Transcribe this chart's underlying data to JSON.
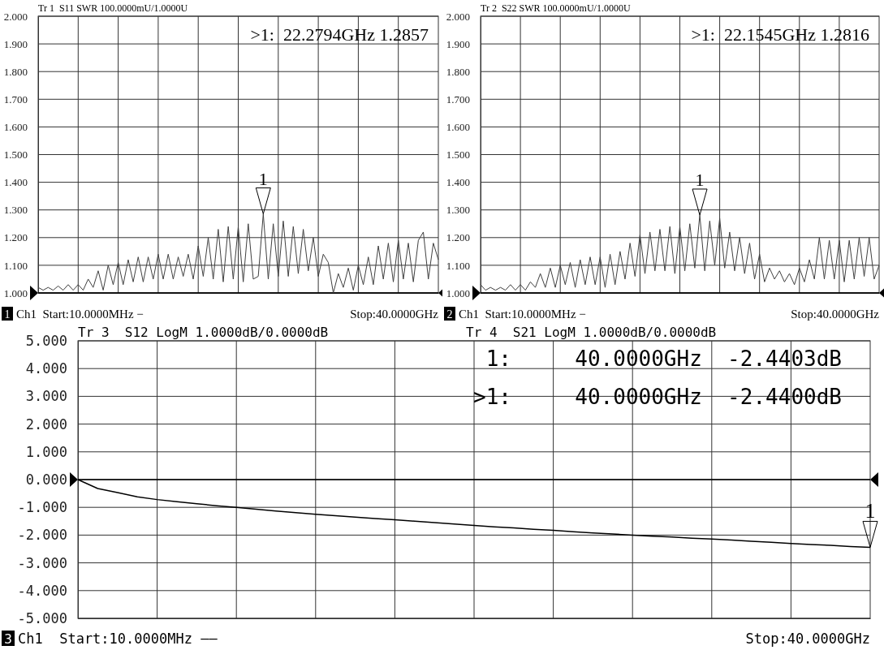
{
  "chart_data": [
    {
      "type": "line",
      "title": "Tr 1  S11 SWR 100.0000mU/1.0000U",
      "categories": [
        null,
        null,
        null,
        null,
        null,
        null,
        null,
        null,
        null,
        null,
        null,
        null,
        null,
        null,
        null,
        null,
        null,
        null,
        null,
        null,
        null,
        null,
        null,
        null,
        null,
        null,
        null,
        null,
        null,
        null,
        null,
        null,
        null,
        null,
        null,
        null,
        null,
        null,
        null,
        null,
        null,
        null,
        null,
        null,
        null,
        null,
        null,
        null,
        null,
        null,
        null,
        null,
        null,
        null,
        null,
        null,
        null,
        null,
        null,
        null,
        null,
        null,
        null,
        null,
        null,
        null,
        null,
        null,
        null,
        null,
        null,
        null,
        null,
        null,
        null,
        null,
        null,
        null,
        null,
        null,
        null
      ],
      "series": [
        {
          "color": "#404040",
          "values": [
            1.02,
            1.01,
            1.02,
            1.01,
            1.025,
            1.01,
            1.03,
            1.01,
            1.03,
            1.01,
            1.05,
            1.02,
            1.08,
            1.01,
            1.1,
            1.03,
            1.11,
            1.03,
            1.12,
            1.04,
            1.13,
            1.04,
            1.13,
            1.05,
            1.14,
            1.05,
            1.14,
            1.05,
            1.13,
            1.06,
            1.14,
            1.05,
            1.17,
            1.06,
            1.2,
            1.05,
            1.23,
            1.04,
            1.24,
            1.05,
            1.24,
            1.04,
            1.25,
            1.05,
            1.06,
            1.2857,
            1.05,
            1.25,
            1.06,
            1.26,
            1.06,
            1.24,
            1.07,
            1.23,
            1.08,
            1.2,
            1.06,
            1.14,
            1.11,
            1.0,
            1.07,
            1.02,
            1.09,
            1.01,
            1.1,
            1.03,
            1.13,
            1.03,
            1.17,
            1.05,
            1.18,
            1.04,
            1.19,
            1.05,
            1.18,
            1.04,
            1.19,
            1.22,
            1.05,
            1.18,
            1.12
          ]
        }
      ],
      "ylim": [
        1,
        2
      ],
      "yticks": [
        {
          "value": 1,
          "label": "1.000"
        },
        {
          "value": 1.1,
          "label": "1.100"
        },
        {
          "value": 1.2,
          "label": "1.200"
        },
        {
          "value": 1.3,
          "label": "1.300"
        },
        {
          "value": 1.4,
          "label": "1.400"
        },
        {
          "value": 1.5,
          "label": "1.500"
        },
        {
          "value": 1.6,
          "label": "1.600"
        },
        {
          "value": 1.7,
          "label": "1.700"
        },
        {
          "value": 1.8,
          "label": "1.800"
        },
        {
          "value": 1.9,
          "label": "1.900"
        },
        {
          "value": 2,
          "label": "2.000"
        }
      ],
      "tick_labels": "y",
      "grid": true,
      "line_style": "solid",
      "ref_lines": [
        {
          "axis": "y",
          "value": 1
        }
      ],
      "annotations": [
        ">1:  22.2794GHz 1.2857",
        "1",
        "Ch1  Start:10.0000MHz −",
        "Stop:40.0000GHz",
        {
          "text": "1",
          "y": 1.2857
        }
      ]
    },
    {
      "type": "line",
      "title": "Tr 2  S22 SWR 100.0000mU/1.0000U",
      "categories": [
        null,
        null,
        null,
        null,
        null,
        null,
        null,
        null,
        null,
        null,
        null,
        null,
        null,
        null,
        null,
        null,
        null,
        null,
        null,
        null,
        null,
        null,
        null,
        null,
        null,
        null,
        null,
        null,
        null,
        null,
        null,
        null,
        null,
        null,
        null,
        null,
        null,
        null,
        null,
        null,
        null,
        null,
        null,
        null,
        null,
        null,
        null,
        null,
        null,
        null,
        null,
        null,
        null,
        null,
        null,
        null,
        null,
        null,
        null,
        null,
        null,
        null,
        null,
        null,
        null,
        null,
        null,
        null,
        null,
        null,
        null,
        null,
        null,
        null,
        null,
        null,
        null,
        null,
        null,
        null,
        null
      ],
      "series": [
        {
          "color": "#404040",
          "values": [
            1.03,
            1.01,
            1.02,
            1.01,
            1.02,
            1.01,
            1.03,
            1.01,
            1.03,
            1.01,
            1.04,
            1.02,
            1.07,
            1.02,
            1.09,
            1.02,
            1.1,
            1.03,
            1.11,
            1.02,
            1.12,
            1.03,
            1.13,
            1.03,
            1.13,
            1.02,
            1.14,
            1.03,
            1.15,
            1.05,
            1.18,
            1.06,
            1.21,
            1.07,
            1.22,
            1.08,
            1.23,
            1.08,
            1.24,
            1.07,
            1.24,
            1.08,
            1.25,
            1.09,
            1.2816,
            1.08,
            1.26,
            1.1,
            1.27,
            1.09,
            1.22,
            1.08,
            1.2,
            1.07,
            1.18,
            1.05,
            1.14,
            1.04,
            1.09,
            1.05,
            1.08,
            1.04,
            1.07,
            1.03,
            1.09,
            1.04,
            1.12,
            1.05,
            1.2,
            1.05,
            1.19,
            1.05,
            1.19,
            1.04,
            1.19,
            1.05,
            1.2,
            1.06,
            1.2,
            1.05,
            1.1
          ]
        }
      ],
      "ylim": [
        1,
        2
      ],
      "yticks": [
        {
          "value": 1,
          "label": "1.000"
        },
        {
          "value": 1.1,
          "label": "1.100"
        },
        {
          "value": 1.2,
          "label": "1.200"
        },
        {
          "value": 1.3,
          "label": "1.300"
        },
        {
          "value": 1.4,
          "label": "1.400"
        },
        {
          "value": 1.5,
          "label": "1.500"
        },
        {
          "value": 1.6,
          "label": "1.600"
        },
        {
          "value": 1.7,
          "label": "1.700"
        },
        {
          "value": 1.8,
          "label": "1.800"
        },
        {
          "value": 1.9,
          "label": "1.900"
        },
        {
          "value": 2,
          "label": "2.000"
        }
      ],
      "tick_labels": "y",
      "grid": true,
      "line_style": "solid",
      "ref_lines": [
        {
          "axis": "y",
          "value": 1
        }
      ],
      "annotations": [
        ">1:  22.1545GHz 1.2816",
        "2",
        "Ch1  Start:10.0000MHz −",
        "Stop:40.0000GHz",
        {
          "text": "1",
          "y": 1.2816
        }
      ]
    },
    {
      "type": "line",
      "title": "Tr 3  S12 LogM 1.0000dB/0.0000dB",
      "subtitle": "Tr 4  S21 LogM 1.0000dB/0.0000dB",
      "categories": [
        null,
        null,
        null,
        null,
        null,
        null,
        null,
        null,
        null,
        null,
        null,
        null,
        null,
        null,
        null,
        null,
        null,
        null,
        null,
        null,
        null,
        null,
        null,
        null,
        null,
        null,
        null,
        null,
        null,
        null,
        null,
        null,
        null,
        null,
        null,
        null,
        null,
        null,
        null,
        null,
        null
      ],
      "series": [
        {
          "color": "#000000",
          "values": [
            0,
            -0.32,
            -0.47,
            -0.62,
            -0.72,
            -0.8,
            -0.87,
            -0.94,
            -1.0,
            -1.07,
            -1.13,
            -1.19,
            -1.25,
            -1.3,
            -1.35,
            -1.4,
            -1.45,
            -1.5,
            -1.55,
            -1.6,
            -1.65,
            -1.7,
            -1.74,
            -1.79,
            -1.83,
            -1.88,
            -1.92,
            -1.96,
            -2.0,
            -2.04,
            -2.07,
            -2.11,
            -2.14,
            -2.18,
            -2.22,
            -2.26,
            -2.3,
            -2.34,
            -2.37,
            -2.41,
            -2.44
          ]
        }
      ],
      "ylim": [
        -5,
        5
      ],
      "yticks": [
        {
          "value": -5,
          "label": "-5.000"
        },
        {
          "value": -4,
          "label": "-4.000"
        },
        {
          "value": -3,
          "label": "-3.000"
        },
        {
          "value": -2,
          "label": "-2.000"
        },
        {
          "value": -1,
          "label": "-1.000"
        },
        {
          "value": 0,
          "label": "0.000"
        },
        {
          "value": 1,
          "label": "1.000"
        },
        {
          "value": 2,
          "label": "2.000"
        },
        {
          "value": 3,
          "label": "3.000"
        },
        {
          "value": 4,
          "label": "4.000"
        },
        {
          "value": 5,
          "label": "5.000"
        }
      ],
      "tick_labels": "y",
      "grid": true,
      "line_style": "solid",
      "ref_lines": [
        {
          "axis": "y",
          "value": 0
        }
      ],
      "annotations": [
        "1:     40.0000GHz  -2.4403dB",
        ">1:     40.0000GHz  -2.4400dB",
        "3",
        "Ch1  Start:10.0000MHz ——",
        "Stop:40.0000GHz",
        {
          "text": "1",
          "y": -2.44
        }
      ]
    }
  ]
}
